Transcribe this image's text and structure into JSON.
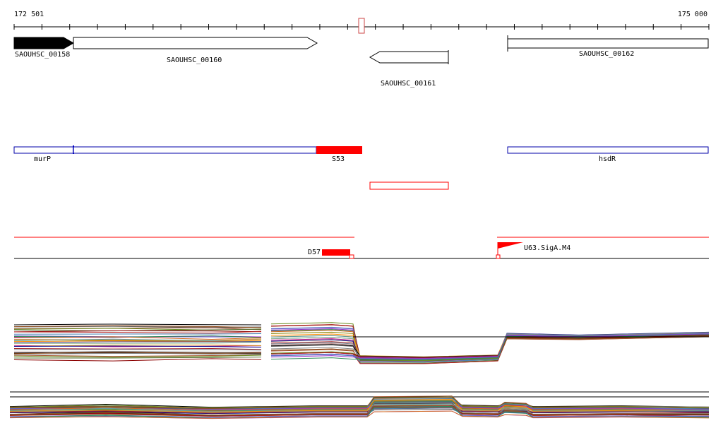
{
  "ruler": {
    "start_label": "172 501",
    "end_label": "175 000"
  },
  "genes": [
    {
      "label": "SAOUHSC_00158",
      "strand": "+",
      "filled": true
    },
    {
      "label": "SAOUHSC_00160",
      "strand": "+",
      "filled": false
    },
    {
      "label": "SAOUHSC_00161",
      "strand": "-",
      "filled": false
    },
    {
      "label": "SAOUHSC_00162",
      "strand": "+",
      "filled": false
    }
  ],
  "features": [
    {
      "label": "murP"
    },
    {
      "label": "S53",
      "highlight": true
    },
    {
      "label": "hsdR"
    }
  ],
  "annotations": [
    {
      "label": "D57"
    },
    {
      "label": "U63.SigA.M4"
    }
  ],
  "colors": {
    "gene_filled": "#000000",
    "feature_border": "#0000aa",
    "highlight": "#ff0000",
    "axis": "#000000"
  }
}
